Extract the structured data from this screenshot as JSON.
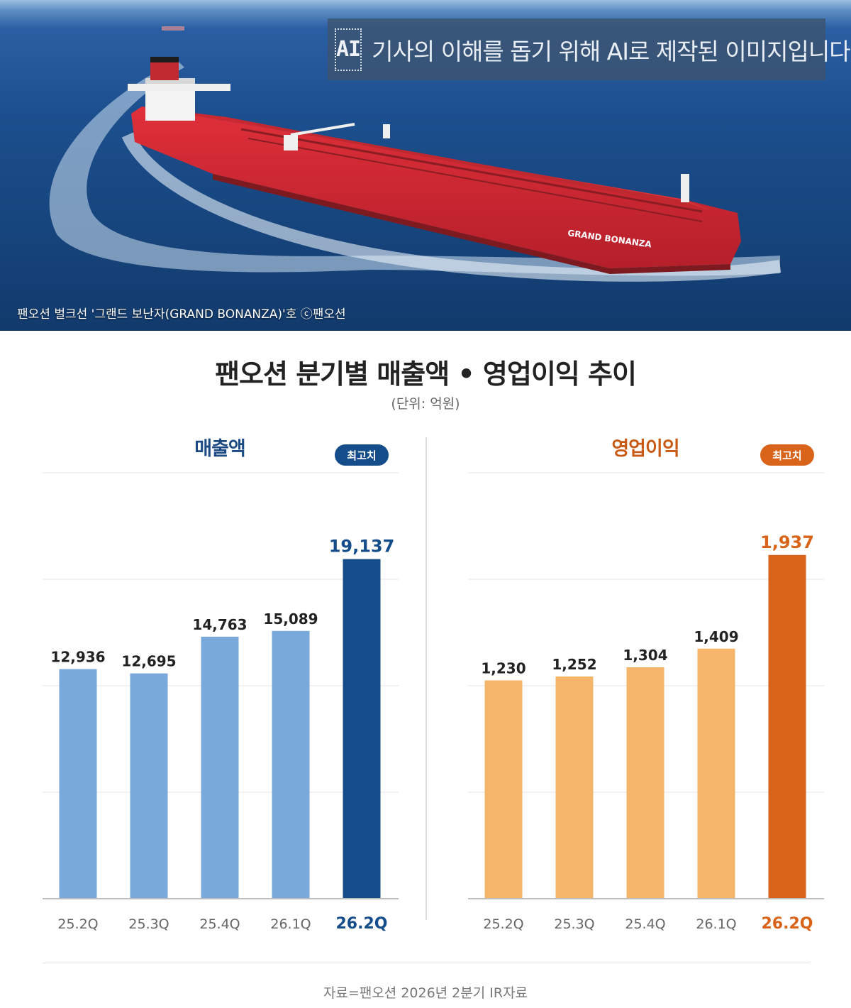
{
  "photo": {
    "ai_notice": "기사의 이해를 돕기 위해 AI로 제작된 이미지입니다",
    "ai_badge_text": "AI",
    "caption": "팬오션 벌크선 '그랜드 보난자(GRAND BONANZA)'호  ⓒ팬오션",
    "ship_name": "GRAND BONANZA"
  },
  "header": {
    "title": "팬오션 분기별 매출액 • 영업이익 추이",
    "unit": "(단위: 억원)"
  },
  "colors": {
    "revenue_bar": "#79a8db",
    "revenue_highlight": "#144d8a",
    "profit_bar": "#f5b56b",
    "profit_highlight": "#d86319"
  },
  "chart_data": [
    {
      "type": "bar",
      "title": "매출액",
      "badge": "최고치",
      "categories": [
        "25.2Q",
        "25.3Q",
        "25.4Q",
        "26.1Q",
        "26.2Q"
      ],
      "values": [
        12936,
        12695,
        14763,
        15089,
        19137
      ],
      "value_labels": [
        "12,936",
        "12,695",
        "14,763",
        "15,089",
        "19,137"
      ],
      "highlight_index": 4,
      "ylim": [
        0,
        24000
      ],
      "grid": true
    },
    {
      "type": "bar",
      "title": "영업이익",
      "badge": "최고치",
      "categories": [
        "25.2Q",
        "25.3Q",
        "25.4Q",
        "26.1Q",
        "26.2Q"
      ],
      "values": [
        1230,
        1252,
        1304,
        1409,
        1937
      ],
      "value_labels": [
        "1,230",
        "1,252",
        "1,304",
        "1,409",
        "1,937"
      ],
      "highlight_index": 4,
      "ylim": [
        0,
        2400
      ],
      "grid": true
    }
  ],
  "footer": {
    "source": "자료=팬오션 2026년 2분기 IR자료"
  }
}
